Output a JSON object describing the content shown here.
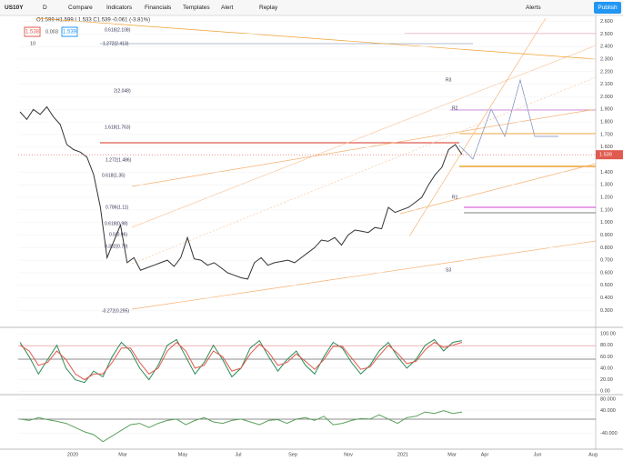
{
  "toolbar": {
    "symbol": "US10Y",
    "interval": "D",
    "items": [
      "Compare",
      "Indicators",
      "Financials",
      "Templates",
      "Alert",
      "Replay"
    ],
    "right": "Alerts",
    "publish": "Publish"
  },
  "header": {
    "ohlc": "O1.599 H1.599 L1.533 C1.539 -0.061 (-3.81%)",
    "sell": "1.538",
    "spread": "0.003",
    "buy": "1.539",
    "legend": "10"
  },
  "chart_data": [
    {
      "type": "line",
      "name": "US10Y",
      "color": "#333",
      "values": [
        1.88,
        1.82,
        1.9,
        1.86,
        1.92,
        1.84,
        1.78,
        1.62,
        1.58,
        1.56,
        1.52,
        1.38,
        1.12,
        0.72,
        0.85,
        0.98,
        0.68,
        0.72,
        0.62,
        0.64,
        0.66,
        0.68,
        0.7,
        0.65,
        0.72,
        0.88,
        0.71,
        0.7,
        0.66,
        0.68,
        0.64,
        0.6,
        0.58,
        0.56,
        0.55,
        0.68,
        0.72,
        0.66,
        0.68,
        0.69,
        0.7,
        0.68,
        0.72,
        0.76,
        0.8,
        0.86,
        0.85,
        0.88,
        0.82,
        0.9,
        0.94,
        0.93,
        0.92,
        0.96,
        0.95,
        1.12,
        1.08,
        1.1,
        1.12,
        1.16,
        1.2,
        1.3,
        1.38,
        1.44,
        1.58,
        1.62,
        1.54
      ],
      "ylim": [
        0.18,
        2.64
      ],
      "yticks": [
        {
          "value": 2.6,
          "label": "2.600"
        },
        {
          "value": 2.5,
          "label": "2.500"
        },
        {
          "value": 2.4,
          "label": "2.400"
        },
        {
          "value": 2.3,
          "label": "2.300"
        },
        {
          "value": 2.2,
          "label": "2.200"
        },
        {
          "value": 2.1,
          "label": "2.100"
        },
        {
          "value": 2.0,
          "label": "2.000"
        },
        {
          "value": 1.9,
          "label": "1.900"
        },
        {
          "value": 1.8,
          "label": "1.800"
        },
        {
          "value": 1.7,
          "label": "1.700"
        },
        {
          "value": 1.6,
          "label": "1.600"
        },
        {
          "value": 1.4,
          "label": "1.400"
        },
        {
          "value": 1.3,
          "label": "1.300"
        },
        {
          "value": 1.2,
          "label": "1.200"
        },
        {
          "value": 1.1,
          "label": "1.100"
        },
        {
          "value": 1.0,
          "label": "1.000"
        },
        {
          "value": 0.9,
          "label": "0.900"
        },
        {
          "value": 0.8,
          "label": "0.800"
        },
        {
          "value": 0.7,
          "label": "0.700"
        },
        {
          "value": 0.6,
          "label": "0.600"
        },
        {
          "value": 0.5,
          "label": "0.500"
        },
        {
          "value": 0.4,
          "label": "0.400"
        },
        {
          "value": 0.3,
          "label": "0.300"
        }
      ],
      "last_price": {
        "value": 1.539,
        "label": "1.539"
      },
      "annotations": [
        "0.618(2.108)",
        "1.272(2.413)",
        "2(2.048)",
        "1.618(1.763)",
        "1.272(1.486)",
        "0.618(1.35)",
        "0.786(1.11)",
        "0.618(0.98)",
        "0.5(0.96)",
        "0.382(0.79)",
        "-0.272(0.295)",
        "R3",
        "R2",
        "R1",
        "S3"
      ],
      "x_labels": [
        "2020",
        "Mar",
        "May",
        "Jul",
        "Sep",
        "Nov",
        "2021",
        "Mar",
        "Apr",
        "Jun",
        "Aug"
      ]
    },
    {
      "type": "line",
      "ylim": [
        -6,
        108
      ],
      "yticks": [
        {
          "value": 100,
          "label": "100.00"
        },
        {
          "value": 80,
          "label": "80.00"
        },
        {
          "value": 60,
          "label": "60.00"
        },
        {
          "value": 40,
          "label": "40.00"
        },
        {
          "value": 20,
          "label": "20.00"
        },
        {
          "value": 0,
          "label": "0.00"
        }
      ],
      "series": [
        {
          "color": "#2e8b57",
          "values": [
            85,
            60,
            30,
            55,
            80,
            40,
            20,
            15,
            35,
            25,
            60,
            85,
            70,
            40,
            20,
            45,
            80,
            90,
            60,
            30,
            50,
            80,
            55,
            25,
            40,
            75,
            88,
            60,
            35,
            55,
            70,
            45,
            30,
            60,
            85,
            75,
            50,
            30,
            45,
            70,
            85,
            60,
            40,
            55,
            80,
            90,
            70,
            85,
            88
          ]
        },
        {
          "color": "#e05a4f",
          "values": [
            80,
            70,
            45,
            50,
            70,
            55,
            30,
            20,
            30,
            30,
            50,
            75,
            75,
            50,
            30,
            40,
            70,
            85,
            70,
            40,
            45,
            70,
            60,
            35,
            40,
            65,
            82,
            68,
            45,
            50,
            65,
            52,
            38,
            55,
            78,
            78,
            58,
            38,
            42,
            62,
            80,
            66,
            48,
            52,
            72,
            85,
            76,
            80,
            85
          ]
        }
      ]
    },
    {
      "type": "line",
      "ylim": [
        -90,
        90
      ],
      "yticks": [
        {
          "value": 80,
          "label": "80.000"
        },
        {
          "value": 40,
          "label": "40.000"
        },
        {
          "value": -40,
          "label": "-40.000"
        }
      ],
      "series": [
        {
          "color": "#5aa05a",
          "values": [
            10,
            5,
            15,
            8,
            2,
            -5,
            -20,
            -35,
            -45,
            -70,
            -50,
            -30,
            -10,
            -5,
            -20,
            -5,
            5,
            10,
            -10,
            5,
            15,
            0,
            -5,
            5,
            10,
            0,
            -10,
            5,
            8,
            -5,
            10,
            15,
            5,
            20,
            -10,
            -5,
            5,
            12,
            10,
            25,
            10,
            -5,
            15,
            20,
            35,
            30,
            40,
            30,
            35
          ]
        }
      ]
    }
  ]
}
